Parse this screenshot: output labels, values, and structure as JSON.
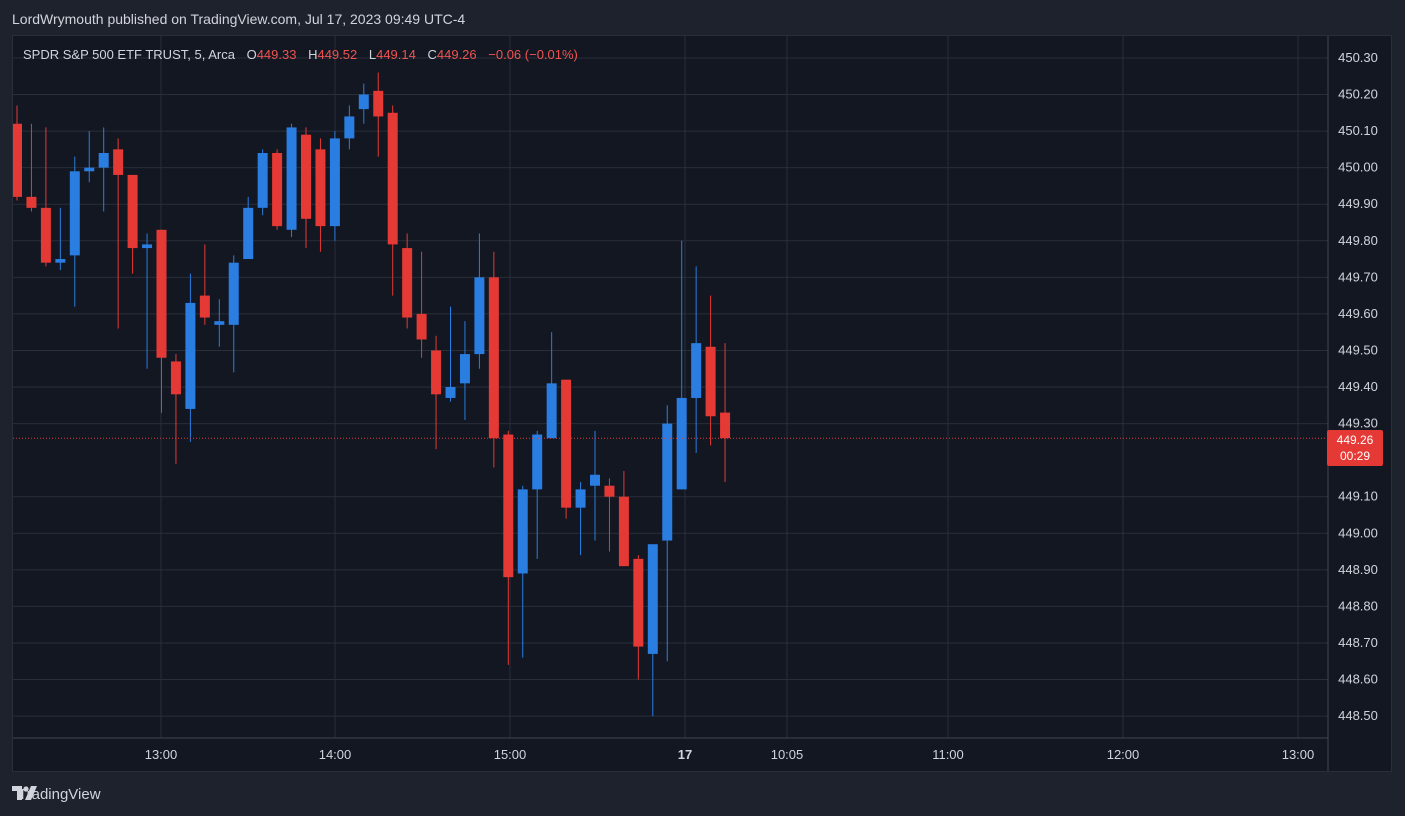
{
  "header": {
    "published": "LordWrymouth published on TradingView.com, Jul 17, 2023 09:49 UTC-4"
  },
  "legend": {
    "symbol": "SPDR S&P 500 ETF TRUST, 5, Arca",
    "o_label": "O",
    "o_value": "449.33",
    "h_label": "H",
    "h_value": "449.52",
    "l_label": "L",
    "l_value": "449.14",
    "c_label": "C",
    "c_value": "449.26",
    "change": "−0.06 (−0.01%)"
  },
  "price_tag": {
    "price": "449.26",
    "countdown": "00:29"
  },
  "footer": {
    "brand": "TradingView"
  },
  "colors": {
    "up": "#2a7de1",
    "down": "#e53935",
    "background": "#131722",
    "grid": "#2a2e39",
    "text": "#d1d4dc"
  },
  "chart_data": {
    "type": "candlestick",
    "ylim": [
      448.44,
      450.36
    ],
    "y_ticks": [
      "450.30",
      "450.20",
      "450.10",
      "450.00",
      "449.90",
      "449.80",
      "449.70",
      "449.60",
      "449.50",
      "449.40",
      "449.30",
      "449.10",
      "449.00",
      "448.90",
      "448.80",
      "448.70",
      "448.60",
      "448.50"
    ],
    "x_ticks": [
      "13:00",
      "14:00",
      "15:00",
      "17",
      "10:05",
      "11:00",
      "12:00",
      "13:00"
    ],
    "last_price": 449.26,
    "candles": [
      {
        "o": 450.12,
        "h": 450.17,
        "l": 449.91,
        "c": 449.92
      },
      {
        "o": 449.92,
        "h": 450.12,
        "l": 449.88,
        "c": 449.89
      },
      {
        "o": 449.89,
        "h": 450.11,
        "l": 449.73,
        "c": 449.74
      },
      {
        "o": 449.74,
        "h": 449.89,
        "l": 449.72,
        "c": 449.75
      },
      {
        "o": 449.76,
        "h": 450.03,
        "l": 449.62,
        "c": 449.99
      },
      {
        "o": 449.99,
        "h": 450.1,
        "l": 449.96,
        "c": 450.0
      },
      {
        "o": 450.0,
        "h": 450.11,
        "l": 449.88,
        "c": 450.04
      },
      {
        "o": 450.05,
        "h": 450.08,
        "l": 449.56,
        "c": 449.98
      },
      {
        "o": 449.98,
        "h": 449.98,
        "l": 449.71,
        "c": 449.78
      },
      {
        "o": 449.78,
        "h": 449.82,
        "l": 449.45,
        "c": 449.79
      },
      {
        "o": 449.83,
        "h": 449.83,
        "l": 449.33,
        "c": 449.48
      },
      {
        "o": 449.47,
        "h": 449.49,
        "l": 449.19,
        "c": 449.38
      },
      {
        "o": 449.34,
        "h": 449.71,
        "l": 449.25,
        "c": 449.63
      },
      {
        "o": 449.65,
        "h": 449.79,
        "l": 449.57,
        "c": 449.59
      },
      {
        "o": 449.57,
        "h": 449.64,
        "l": 449.51,
        "c": 449.58
      },
      {
        "o": 449.57,
        "h": 449.76,
        "l": 449.44,
        "c": 449.74
      },
      {
        "o": 449.75,
        "h": 449.92,
        "l": 449.75,
        "c": 449.89
      },
      {
        "o": 449.89,
        "h": 450.05,
        "l": 449.87,
        "c": 450.04
      },
      {
        "o": 450.04,
        "h": 450.05,
        "l": 449.83,
        "c": 449.84
      },
      {
        "o": 449.83,
        "h": 450.12,
        "l": 449.81,
        "c": 450.11
      },
      {
        "o": 450.09,
        "h": 450.11,
        "l": 449.78,
        "c": 449.86
      },
      {
        "o": 450.05,
        "h": 450.08,
        "l": 449.77,
        "c": 449.84
      },
      {
        "o": 449.84,
        "h": 450.1,
        "l": 449.8,
        "c": 450.08
      },
      {
        "o": 450.08,
        "h": 450.17,
        "l": 450.05,
        "c": 450.14
      },
      {
        "o": 450.16,
        "h": 450.23,
        "l": 450.12,
        "c": 450.2
      },
      {
        "o": 450.21,
        "h": 450.26,
        "l": 450.03,
        "c": 450.14
      },
      {
        "o": 450.15,
        "h": 450.17,
        "l": 449.65,
        "c": 449.79
      },
      {
        "o": 449.78,
        "h": 449.82,
        "l": 449.56,
        "c": 449.59
      },
      {
        "o": 449.6,
        "h": 449.77,
        "l": 449.48,
        "c": 449.53
      },
      {
        "o": 449.5,
        "h": 449.54,
        "l": 449.23,
        "c": 449.38
      },
      {
        "o": 449.37,
        "h": 449.62,
        "l": 449.36,
        "c": 449.4
      },
      {
        "o": 449.41,
        "h": 449.58,
        "l": 449.31,
        "c": 449.49
      },
      {
        "o": 449.49,
        "h": 449.82,
        "l": 449.45,
        "c": 449.7
      },
      {
        "o": 449.7,
        "h": 449.77,
        "l": 449.18,
        "c": 449.26
      },
      {
        "o": 449.27,
        "h": 449.28,
        "l": 448.64,
        "c": 448.88
      },
      {
        "o": 448.89,
        "h": 449.13,
        "l": 448.66,
        "c": 449.12
      },
      {
        "o": 449.12,
        "h": 449.28,
        "l": 448.93,
        "c": 449.27
      },
      {
        "o": 449.26,
        "h": 449.55,
        "l": 449.26,
        "c": 449.41
      },
      {
        "o": 449.42,
        "h": 449.42,
        "l": 449.04,
        "c": 449.07
      },
      {
        "o": 449.07,
        "h": 449.14,
        "l": 448.94,
        "c": 449.12
      },
      {
        "o": 449.13,
        "h": 449.28,
        "l": 448.98,
        "c": 449.16
      },
      {
        "o": 449.13,
        "h": 449.15,
        "l": 448.95,
        "c": 449.1
      },
      {
        "o": 449.1,
        "h": 449.17,
        "l": 448.91,
        "c": 448.91
      },
      {
        "o": 448.93,
        "h": 448.94,
        "l": 448.6,
        "c": 448.69
      },
      {
        "o": 448.67,
        "h": 448.97,
        "l": 448.5,
        "c": 448.97
      },
      {
        "o": 448.98,
        "h": 449.35,
        "l": 448.65,
        "c": 449.3
      },
      {
        "o": 449.12,
        "h": 449.8,
        "l": 449.12,
        "c": 449.37
      },
      {
        "o": 449.37,
        "h": 449.73,
        "l": 449.22,
        "c": 449.52
      },
      {
        "o": 449.51,
        "h": 449.65,
        "l": 449.24,
        "c": 449.32
      },
      {
        "o": 449.33,
        "h": 449.52,
        "l": 449.14,
        "c": 449.26
      }
    ]
  }
}
